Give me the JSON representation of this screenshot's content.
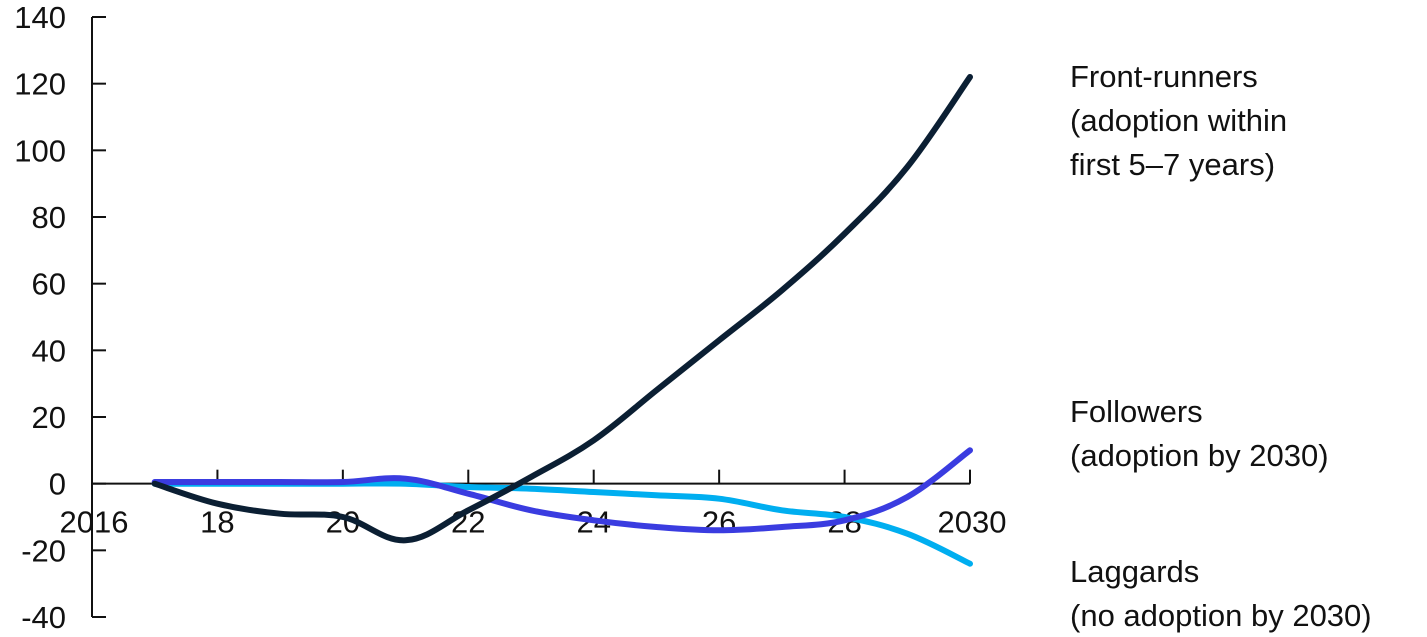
{
  "chart_data": {
    "type": "line",
    "title": "",
    "xlabel": "",
    "ylabel": "",
    "xlim": [
      2016,
      2030
    ],
    "ylim": [
      -40,
      140
    ],
    "grid": false,
    "x_ticks": [
      {
        "value": 2016,
        "label": "2016"
      },
      {
        "value": 2018,
        "label": "18"
      },
      {
        "value": 2020,
        "label": "20"
      },
      {
        "value": 2022,
        "label": "22"
      },
      {
        "value": 2024,
        "label": "24"
      },
      {
        "value": 2026,
        "label": "26"
      },
      {
        "value": 2028,
        "label": "28"
      },
      {
        "value": 2030,
        "label": "2030"
      }
    ],
    "y_ticks": [
      {
        "value": 140,
        "label": "140"
      },
      {
        "value": 120,
        "label": "120"
      },
      {
        "value": 100,
        "label": "100"
      },
      {
        "value": 80,
        "label": "80"
      },
      {
        "value": 60,
        "label": "60"
      },
      {
        "value": 40,
        "label": "40"
      },
      {
        "value": 20,
        "label": "20"
      },
      {
        "value": 0,
        "label": "0"
      },
      {
        "value": -20,
        "label": "-20"
      },
      {
        "value": -40,
        "label": "-40"
      }
    ],
    "x": [
      2017,
      2018,
      2019,
      2020,
      2021,
      2022,
      2023,
      2024,
      2025,
      2026,
      2027,
      2028,
      2029,
      2030
    ],
    "series": [
      {
        "name": "Front-runners (adoption within first 5–7 years)",
        "label_lines": [
          "Front-runners",
          "(adoption within",
          "first 5–7 years)"
        ],
        "color": "#0b1f33",
        "values": [
          0,
          -6,
          -9,
          -10,
          -17,
          -8,
          2,
          13,
          28,
          43,
          58,
          75,
          95,
          122
        ]
      },
      {
        "name": "Followers (adoption by 2030)",
        "label_lines": [
          "Followers",
          "(adoption by 2030)"
        ],
        "color": "#3a3ce0",
        "values": [
          0.5,
          0.5,
          0.5,
          0.5,
          1.5,
          -3,
          -8,
          -11,
          -13,
          -14,
          -13,
          -11,
          -4,
          10
        ]
      },
      {
        "name": "Laggards (no adoption by 2030)",
        "label_lines": [
          "Laggards",
          "(no adoption by 2030)"
        ],
        "color": "#00aef0",
        "values": [
          0,
          0,
          0,
          0,
          0,
          -1,
          -1.5,
          -2.5,
          -3.5,
          -4.5,
          -8,
          -10,
          -15,
          -24
        ]
      }
    ]
  }
}
